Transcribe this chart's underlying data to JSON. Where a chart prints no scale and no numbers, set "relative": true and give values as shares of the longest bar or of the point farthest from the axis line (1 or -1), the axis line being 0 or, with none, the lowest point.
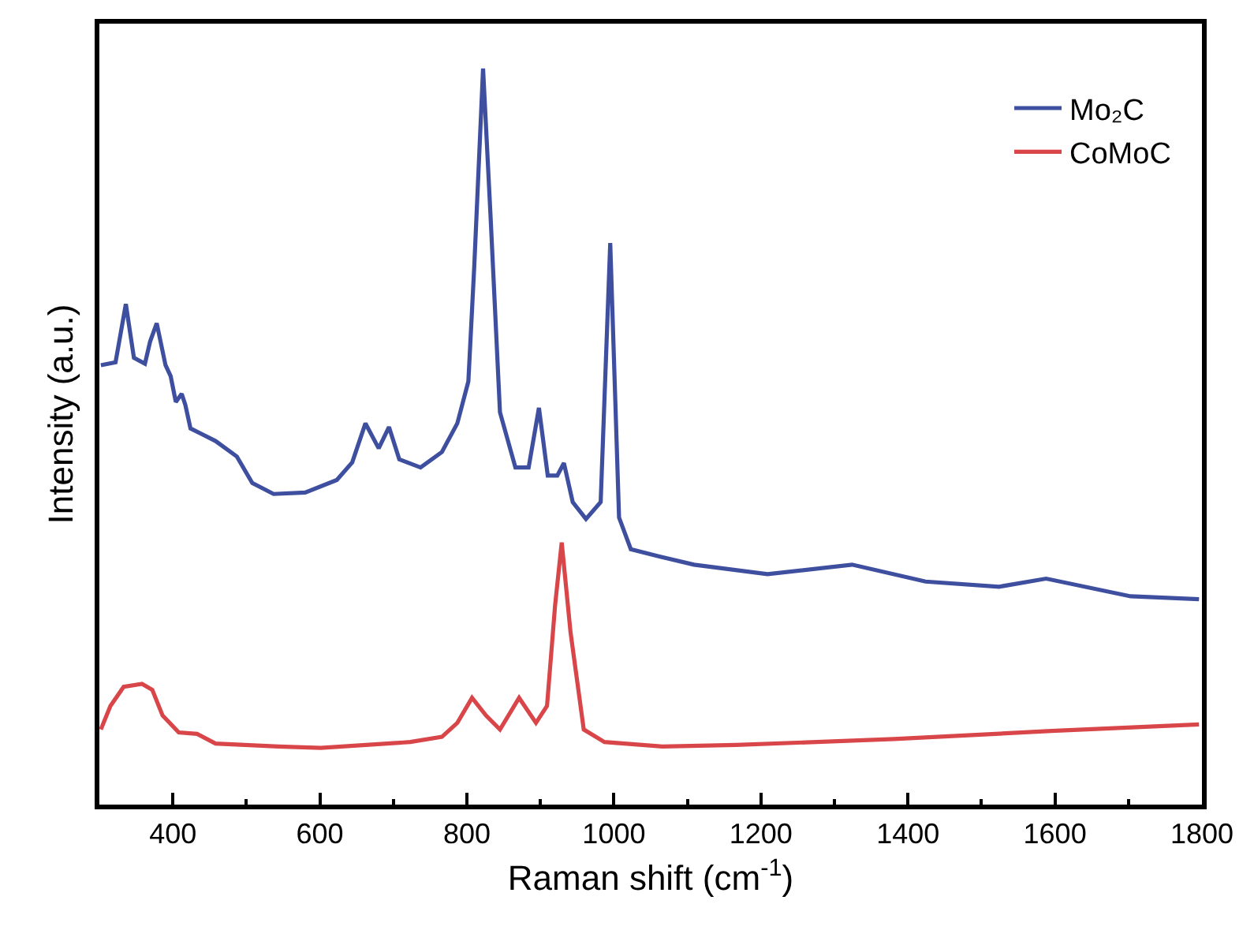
{
  "chart_data": {
    "type": "line",
    "relative": true,
    "xlabel": "Raman shift (cm$^{-1}$)",
    "ylabel": "Intensity (a.u.)",
    "xlim": [
      300,
      1800
    ],
    "xticks": [
      {
        "value": 300,
        "label": null
      },
      400,
      {
        "value": 500,
        "label": null
      },
      600,
      {
        "value": 700,
        "label": null
      },
      800,
      {
        "value": 900,
        "label": null
      },
      1000,
      {
        "value": 1100,
        "label": null
      },
      1200,
      {
        "value": 1300,
        "label": null
      },
      1400,
      {
        "value": 1500,
        "label": null
      },
      1600,
      {
        "value": 1700,
        "label": null
      },
      1800
    ],
    "tick_labels": "x",
    "legend": "top right",
    "marker": "none",
    "line_style": "solid",
    "series": [
      {
        "name": "Mo₂C",
        "color": "#3f4f9f",
        "x": [
          302,
          322,
          336,
          347,
          362,
          369,
          378,
          390,
          397,
          404,
          412,
          417,
          424,
          458,
          487,
          508,
          537,
          580,
          623,
          644,
          662,
          680,
          694,
          708,
          737,
          766,
          787,
          802,
          810,
          822,
          832,
          845,
          866,
          884,
          898,
          910,
          923,
          932,
          944,
          962,
          982,
          995,
          1007,
          1023,
          1062,
          1109,
          1209,
          1324,
          1424,
          1524,
          1588,
          1703,
          1796
        ],
        "values": [
          0.597,
          0.601,
          0.68,
          0.607,
          0.599,
          0.629,
          0.654,
          0.597,
          0.582,
          0.547,
          0.558,
          0.543,
          0.511,
          0.494,
          0.473,
          0.437,
          0.422,
          0.424,
          0.441,
          0.465,
          0.518,
          0.484,
          0.513,
          0.469,
          0.458,
          0.479,
          0.518,
          0.575,
          0.731,
          1.0,
          0.803,
          0.533,
          0.458,
          0.458,
          0.539,
          0.447,
          0.447,
          0.464,
          0.411,
          0.388,
          0.411,
          0.763,
          0.39,
          0.347,
          0.337,
          0.326,
          0.313,
          0.326,
          0.303,
          0.296,
          0.307,
          0.283,
          0.279
        ]
      },
      {
        "name": "CoMoC",
        "color": "#d9464a",
        "x": [
          302,
          315,
          333,
          358,
          372,
          386,
          408,
          433,
          458,
          544,
          601,
          723,
          766,
          787,
          807,
          826,
          845,
          871,
          894,
          909,
          920,
          929,
          941,
          959,
          987,
          1066,
          1166,
          1381,
          1595,
          1796
        ],
        "values": [
          0.102,
          0.134,
          0.16,
          0.164,
          0.156,
          0.121,
          0.098,
          0.096,
          0.083,
          0.079,
          0.077,
          0.085,
          0.092,
          0.111,
          0.145,
          0.121,
          0.102,
          0.145,
          0.111,
          0.134,
          0.271,
          0.356,
          0.234,
          0.102,
          0.085,
          0.079,
          0.081,
          0.089,
          0.1,
          0.109
        ]
      }
    ]
  }
}
